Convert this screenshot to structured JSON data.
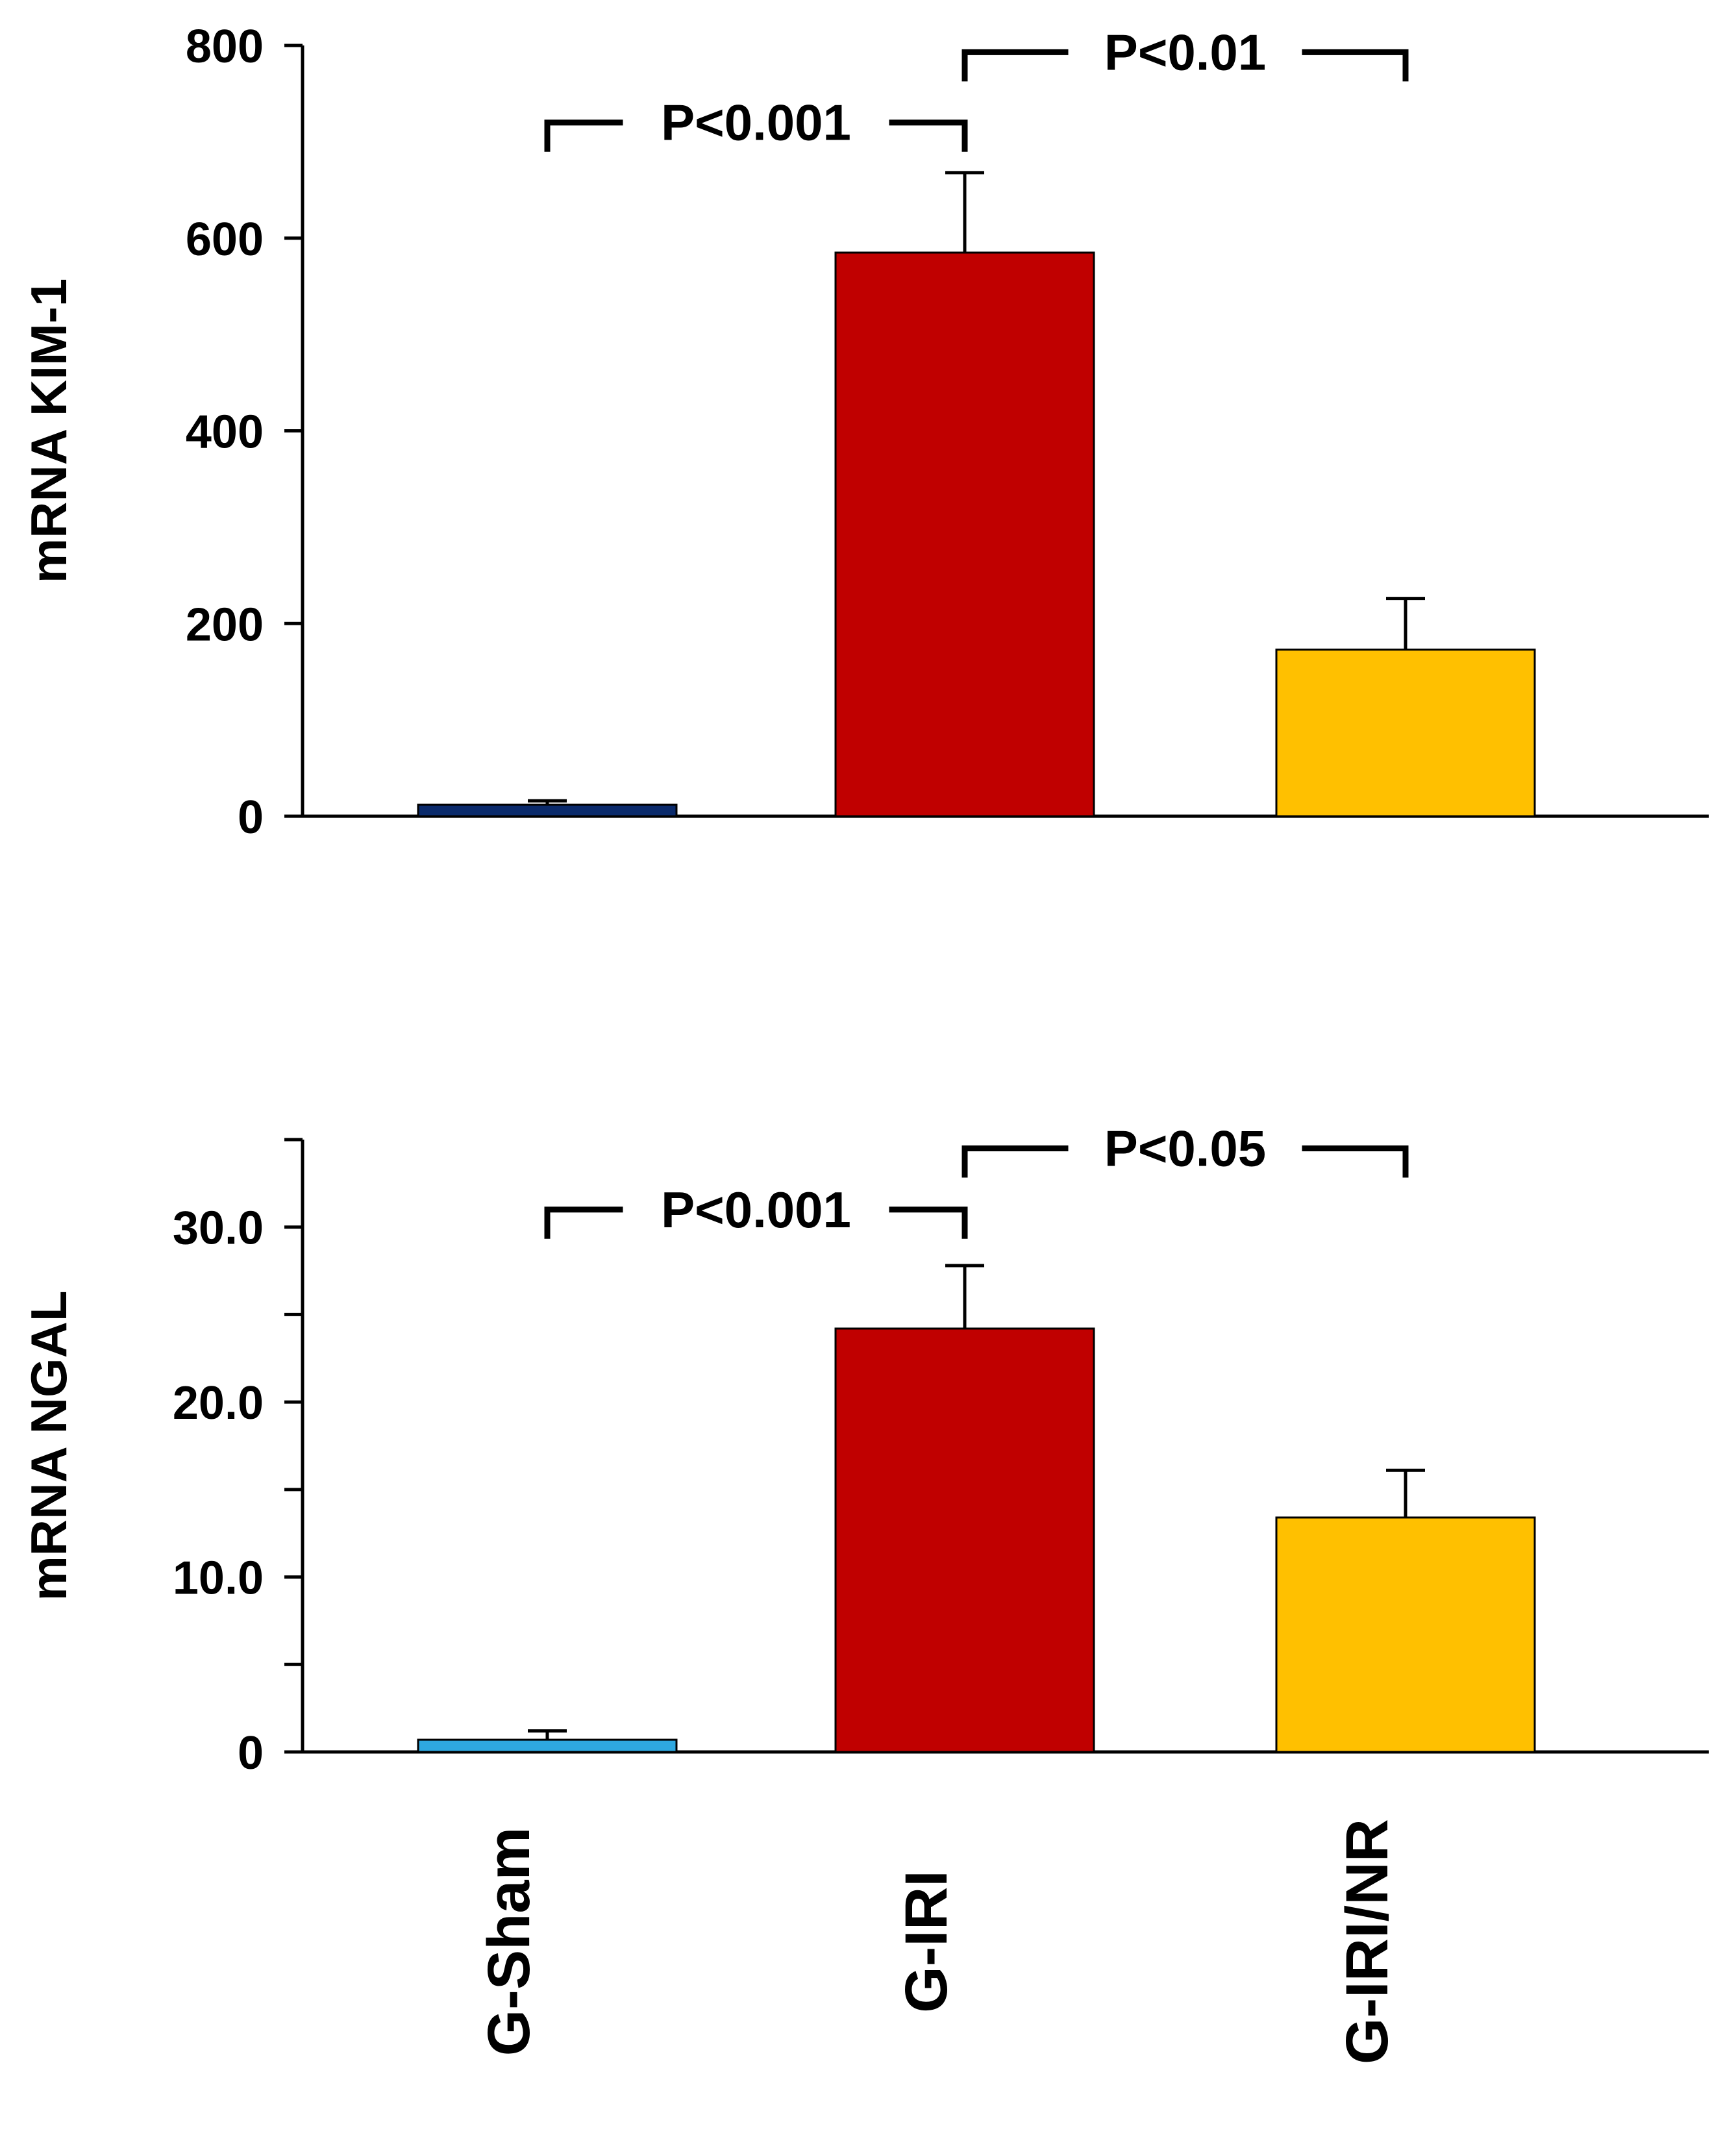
{
  "chart_data": [
    {
      "type": "bar",
      "ylabel": "mRNA KIM-1",
      "xlabel": "",
      "ylim": [
        0,
        800
      ],
      "yticks": [
        0,
        200,
        400,
        600,
        800
      ],
      "ytick_labels": [
        "0",
        "200",
        "400",
        "600",
        "800"
      ],
      "categories": [
        "G-Sham",
        "G-IRI",
        "G-IRI/NR"
      ],
      "values": [
        12,
        585,
        173
      ],
      "errors": [
        4,
        83,
        53
      ],
      "colors": [
        "#0a2a6b",
        "#c00000",
        "#ffc000"
      ],
      "comparisons": [
        {
          "from": "G-Sham",
          "to": "G-IRI",
          "label": "P<0.001",
          "level": 720
        },
        {
          "from": "G-IRI",
          "to": "G-IRI/NR",
          "label": "P<0.01",
          "level": 793
        }
      ]
    },
    {
      "type": "bar",
      "ylabel": "mRNA NGAL",
      "xlabel": "",
      "ylim": [
        0,
        35
      ],
      "yticks": [
        0,
        5,
        10,
        15,
        20,
        25,
        30,
        35
      ],
      "ytick_labels": [
        "0",
        "",
        "10.0",
        "",
        "20.0",
        "",
        "30.0",
        ""
      ],
      "categories": [
        "G-Sham",
        "G-IRI",
        "G-IRI/NR"
      ],
      "values": [
        0.7,
        24.2,
        13.4
      ],
      "errors": [
        0.5,
        3.6,
        2.7
      ],
      "colors": [
        "#2ea8e0",
        "#c00000",
        "#ffc000"
      ],
      "comparisons": [
        {
          "from": "G-Sham",
          "to": "G-IRI",
          "label": "P<0.001",
          "level": 31.0
        },
        {
          "from": "G-IRI",
          "to": "G-IRI/NR",
          "label": "P<0.05",
          "level": 34.5
        }
      ]
    }
  ],
  "x_category_labels": [
    "G-Sham",
    "G-IRI",
    "G-IRI/NR"
  ]
}
